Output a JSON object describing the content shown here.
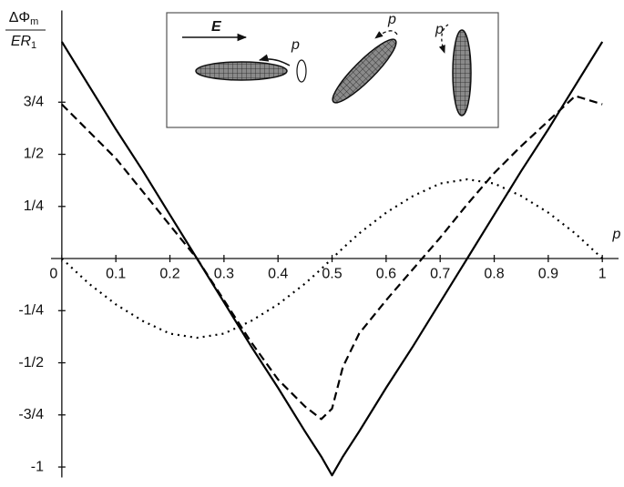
{
  "chart_data": {
    "type": "line",
    "y_label": {
      "numerator": "ΔΦ",
      "numerator_sub": "m",
      "denominator": "ER",
      "denominator_sub": "1"
    },
    "x_label": "p",
    "annotations": [
      "E",
      "p",
      "p",
      "p"
    ],
    "x": [
      0,
      0.05,
      0.1,
      0.15,
      0.2,
      0.25,
      0.3,
      0.35,
      0.4,
      0.45,
      0.48,
      0.5,
      0.52,
      0.55,
      0.6,
      0.65,
      0.7,
      0.75,
      0.8,
      0.85,
      0.9,
      0.95,
      1
    ],
    "series": [
      {
        "color": "#000000",
        "style": "solid",
        "values": [
          1.04,
          0.83,
          0.62,
          0.42,
          0.21,
          0,
          -0.21,
          -0.42,
          -0.62,
          -0.83,
          -0.95,
          -1.04,
          -0.95,
          -0.83,
          -0.62,
          -0.42,
          -0.21,
          0,
          0.21,
          0.42,
          0.62,
          0.83,
          1.04
        ]
      },
      {
        "color": "#000000",
        "style": "dashed",
        "values": [
          0.74,
          0.61,
          0.48,
          0.32,
          0.16,
          0,
          -0.2,
          -0.4,
          -0.58,
          -0.71,
          -0.77,
          -0.72,
          -0.52,
          -0.36,
          -0.2,
          -0.05,
          0.1,
          0.26,
          0.41,
          0.54,
          0.66,
          0.78,
          0.74
        ]
      },
      {
        "color": "#000000",
        "style": "dotted",
        "values": [
          0,
          -0.12,
          -0.22,
          -0.3,
          -0.36,
          -0.38,
          -0.36,
          -0.3,
          -0.22,
          -0.12,
          -0.05,
          0,
          0.05,
          0.12,
          0.22,
          0.3,
          0.36,
          0.38,
          0.36,
          0.3,
          0.22,
          0.12,
          0
        ]
      }
    ],
    "xlim": [
      -0.02,
      1.03
    ],
    "ylim": [
      -1.05,
      1.19
    ],
    "xticks": [
      0,
      0.1,
      0.2,
      0.3,
      0.4,
      0.5,
      0.6,
      0.7,
      0.8,
      0.9,
      1
    ],
    "yticks": [
      {
        "value": -1,
        "label": "-1"
      },
      {
        "value": -0.75,
        "label": "-3/4"
      },
      {
        "value": -0.5,
        "label": "-1/2"
      },
      {
        "value": -0.25,
        "label": "-1/4"
      },
      {
        "value": 0.25,
        "label": "1/4"
      },
      {
        "value": 0.5,
        "label": "1/2"
      },
      {
        "value": 0.75,
        "label": "3/4"
      }
    ],
    "grid": false
  }
}
